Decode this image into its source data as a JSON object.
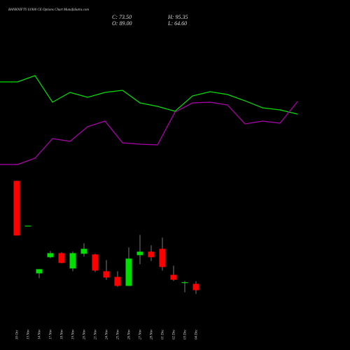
{
  "chart_data": [
    {
      "type": "candlestick",
      "title": "BANKNIFTY 61900 CE Options Chart MunafaSutra.com",
      "close_label": "C: 73.50",
      "high_label": "H: 95.35",
      "open_label": "O: 89.00",
      "low_label": "L: 64.60",
      "categories": [
        "30 Oct",
        "13 Nov",
        "14 Nov",
        "17 Nov",
        "18 Nov",
        "19 Nov",
        "20 Nov",
        "21 Nov",
        "24 Nov",
        "25 Nov",
        "26 Nov",
        "27 Nov",
        "28 Nov",
        "01 Dec",
        "02 Dec",
        "03 Dec",
        "04 Dec"
      ],
      "open": [
        340.4,
        231,
        114.6,
        154,
        164,
        126.6,
        162.5,
        160.8,
        119.8,
        106,
        84,
        159,
        167.6,
        174.5,
        111,
        92,
        89
      ],
      "high": [
        341,
        231,
        125,
        169,
        166,
        168,
        188,
        162.5,
        147,
        119.8,
        178,
        208.7,
        183,
        202,
        133.5,
        96,
        95.35
      ],
      "low": [
        207,
        231,
        102.7,
        152,
        139,
        120,
        155.7,
        118,
        99,
        82,
        84,
        137,
        145,
        121.5,
        96,
        68.5,
        64.6
      ],
      "close": [
        207,
        231,
        124.9,
        164,
        140,
        164,
        174.5,
        121.5,
        104.4,
        84,
        150.6,
        167.6,
        154,
        130,
        99,
        93,
        73.5
      ],
      "up_color": "#00e000",
      "down_color": "#ff0000",
      "ylim": [
        30,
        782
      ]
    },
    {
      "type": "line",
      "categories": [
        null,
        null,
        null,
        null,
        null,
        null,
        null,
        null,
        null,
        null,
        null,
        null,
        null,
        null,
        null,
        null,
        null,
        null
      ],
      "series": [
        {
          "color": "#00e000",
          "values": [
            582.0,
            582.0,
            597.4,
            532.5,
            556.4,
            544.4,
            556.4,
            561.5,
            530.8,
            522.2,
            510.3,
            547.9,
            558.1,
            551.3,
            535.9,
            518.8,
            513.7,
            503.4
          ]
        },
        {
          "color": "#b000b0",
          "values": [
            380.4,
            380.4,
            395.7,
            443.6,
            436.8,
            472.7,
            486.3,
            433.4,
            430.0,
            428.2,
            508.6,
            530.8,
            532.5,
            525.7,
            479.5,
            486.3,
            481.2,
            534.2
          ]
        }
      ],
      "ylim": [
        30,
        782
      ]
    }
  ]
}
